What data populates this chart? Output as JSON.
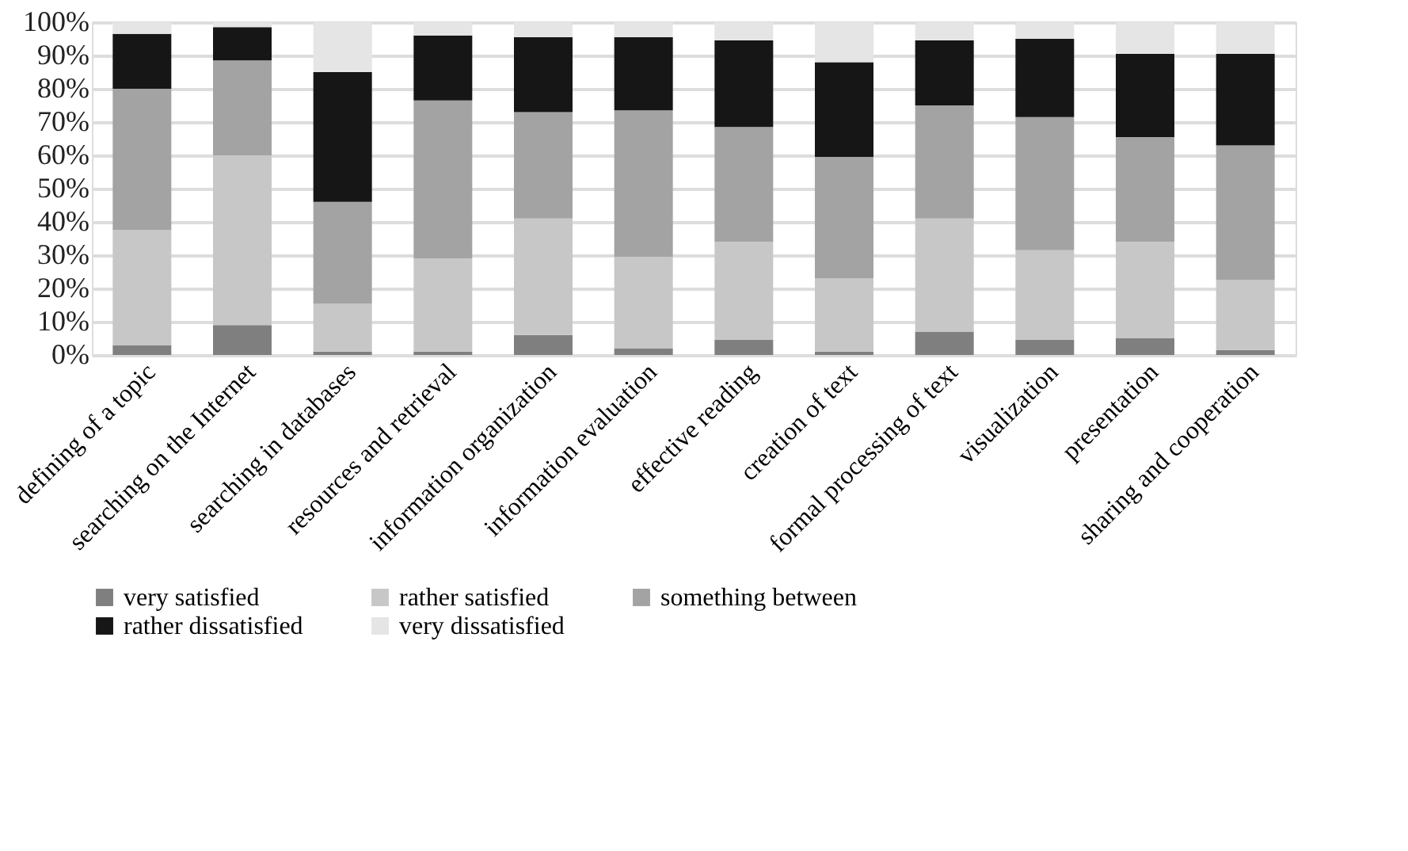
{
  "chart_data": {
    "type": "bar",
    "stacked": true,
    "categories": [
      "defining of a topic",
      "searching on the Internet",
      "searching in databases",
      "resources and retrieval",
      "information organization",
      "information evaluation",
      "effective reading",
      "creation of text",
      "formal processing of text",
      "visualization",
      "presentation",
      "sharing and cooperation"
    ],
    "series": [
      {
        "name": "very satisfied",
        "color": "#7f7f7f",
        "values": [
          3,
          9,
          1,
          1,
          6,
          2,
          4.5,
          1,
          7,
          4.5,
          5,
          1.5
        ]
      },
      {
        "name": "rather satisfied",
        "color": "#c6c7c6",
        "values": [
          34.5,
          51,
          14.5,
          28,
          35,
          27.5,
          29.5,
          22,
          34,
          27,
          29,
          21
        ]
      },
      {
        "name": "something between",
        "color": "#a3a3a3",
        "values": [
          42.5,
          28.5,
          30.5,
          47.5,
          32,
          44,
          34.5,
          36.5,
          34,
          40,
          31.5,
          40.5
        ]
      },
      {
        "name": "rather dissatisfied",
        "color": "#161616",
        "values": [
          16.5,
          10,
          39,
          19.5,
          22.5,
          22,
          26,
          28.5,
          19.5,
          23.5,
          25,
          27.5
        ]
      },
      {
        "name": "very dissatisfied",
        "color": "#e4e5e4",
        "values": [
          3.5,
          1.5,
          15,
          4,
          4.5,
          4.5,
          5.5,
          12,
          5.5,
          5,
          9.5,
          9.5
        ]
      }
    ],
    "ylim": [
      0,
      100
    ],
    "yticks": [
      {
        "value": 0,
        "label": "0%"
      },
      {
        "value": 10,
        "label": "10%"
      },
      {
        "value": 20,
        "label": "20%"
      },
      {
        "value": 30,
        "label": "30%"
      },
      {
        "value": 40,
        "label": "40%"
      },
      {
        "value": 50,
        "label": "50%"
      },
      {
        "value": 60,
        "label": "60%"
      },
      {
        "value": 70,
        "label": "70%"
      },
      {
        "value": 80,
        "label": "80%"
      },
      {
        "value": 90,
        "label": "90%"
      },
      {
        "value": 100,
        "label": "100%"
      }
    ],
    "grid": "y",
    "legend": "bottom"
  }
}
